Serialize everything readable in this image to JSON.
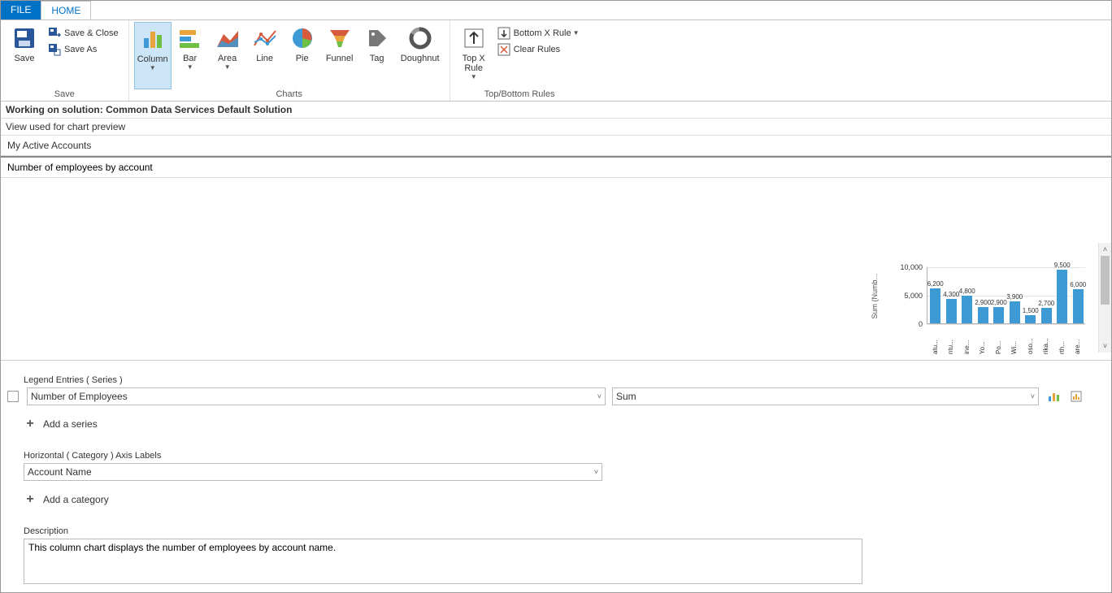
{
  "tabs": {
    "file": "FILE",
    "home": "HOME"
  },
  "ribbon": {
    "save_group": {
      "save": "Save",
      "save_close": "Save & Close",
      "save_as": "Save As",
      "label": "Save"
    },
    "charts_group": {
      "column": "Column",
      "bar": "Bar",
      "area": "Area",
      "line": "Line",
      "pie": "Pie",
      "funnel": "Funnel",
      "tag": "Tag",
      "doughnut": "Doughnut",
      "label": "Charts"
    },
    "rules_group": {
      "topx": "Top X Rule",
      "bottomx": "Bottom X Rule",
      "clear": "Clear Rules",
      "label": "Top/Bottom Rules"
    }
  },
  "solution_bar": "Working on solution: Common Data Services Default Solution",
  "view_label": "View used for chart preview",
  "view_value": "My Active Accounts",
  "chart_name": "Number of employees by account",
  "chart": {
    "type": "bar",
    "y_axis_label": "Sum (Numb...",
    "ylim": [
      0,
      10000
    ],
    "yticks": [
      {
        "value": 0,
        "label": "0"
      },
      {
        "value": 5000,
        "label": "5,000"
      },
      {
        "value": 10000,
        "label": "10,000"
      }
    ],
    "bar_color": "#3e9ad4",
    "grid_color": "#e5e5e5",
    "axis_color": "#b0b0b0",
    "label_fontsize": 8,
    "categories": [
      "atu...",
      "ntu...",
      "ine...",
      "Yo...",
      "Po...",
      "Wi...",
      "oso...",
      "rika...",
      "rth...",
      "are..."
    ],
    "values": [
      6200,
      4300,
      4800,
      2900,
      2900,
      3900,
      1500,
      2700,
      9500,
      6000
    ],
    "value_labels": [
      "6,200",
      "4,300",
      "4,800",
      "2,900",
      "2,900",
      "3,900",
      "1,500",
      "2,700",
      "9,500",
      "6,000"
    ]
  },
  "legend_section": "Legend Entries ( Series )",
  "series_field": "Number of Employees",
  "series_aggr": "Sum",
  "add_series": "Add a series",
  "axis_section": "Horizontal ( Category ) Axis Labels",
  "axis_field": "Account Name",
  "add_category": "Add a category",
  "desc_label": "Description",
  "desc_value": "This column chart displays the number of employees by account name."
}
